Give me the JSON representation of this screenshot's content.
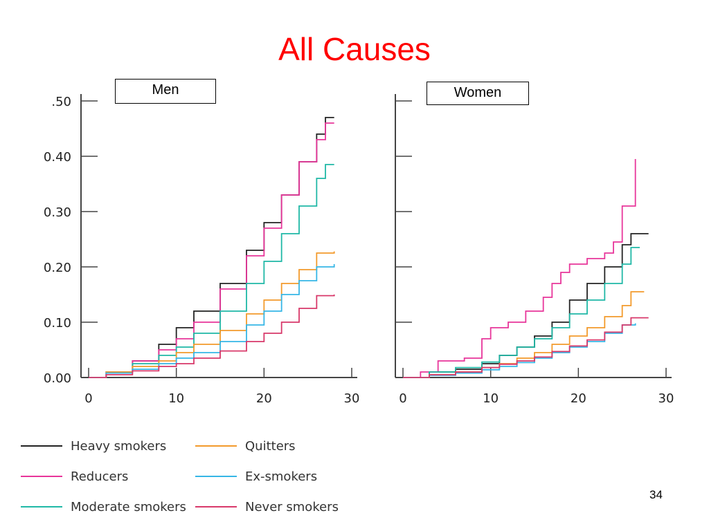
{
  "slide": {
    "title": "All Causes",
    "page_number": "34"
  },
  "legend": {
    "items": [
      {
        "name": "Heavy smokers",
        "color": "#222222"
      },
      {
        "name": "Reducers",
        "color": "#e8359a"
      },
      {
        "name": "Moderate smokers",
        "color": "#1fb8a6"
      },
      {
        "name": "Quitters",
        "color": "#f39a2b"
      },
      {
        "name": "Ex-smokers",
        "color": "#36b6e6"
      },
      {
        "name": "Never smokers",
        "color": "#d8386a"
      }
    ]
  },
  "chart_data": [
    {
      "type": "line",
      "panel_label": "Men",
      "xlim": [
        0,
        30
      ],
      "ylim": [
        0,
        0.5
      ],
      "x_ticks": [
        "0",
        "10",
        "20",
        "30"
      ],
      "y_ticks": [
        ".50",
        "0.40",
        "0.30",
        "0.20",
        "0.10",
        "0.00"
      ],
      "y_tick_values": [
        0.5,
        0.4,
        0.3,
        0.2,
        0.1,
        0.0
      ],
      "grid": false,
      "series": [
        {
          "name": "Heavy smokers",
          "color": "#222222",
          "x": [
            0,
            2,
            5,
            8,
            10,
            12,
            15,
            18,
            20,
            22,
            24,
            26,
            27,
            28
          ],
          "y": [
            0,
            0.01,
            0.03,
            0.06,
            0.09,
            0.12,
            0.17,
            0.23,
            0.28,
            0.33,
            0.39,
            0.44,
            0.47,
            0.47
          ]
        },
        {
          "name": "Reducers",
          "color": "#e8359a",
          "x": [
            0,
            2,
            5,
            8,
            10,
            12,
            15,
            18,
            20,
            22,
            24,
            26,
            27,
            28
          ],
          "y": [
            0,
            0.01,
            0.03,
            0.05,
            0.07,
            0.1,
            0.16,
            0.22,
            0.27,
            0.33,
            0.39,
            0.43,
            0.46,
            0.46
          ]
        },
        {
          "name": "Moderate smokers",
          "color": "#1fb8a6",
          "x": [
            0,
            2,
            5,
            8,
            10,
            12,
            15,
            18,
            20,
            22,
            24,
            26,
            27,
            28
          ],
          "y": [
            0,
            0.01,
            0.025,
            0.04,
            0.055,
            0.08,
            0.12,
            0.17,
            0.21,
            0.26,
            0.31,
            0.36,
            0.385,
            0.385
          ]
        },
        {
          "name": "Quitters",
          "color": "#f39a2b",
          "x": [
            0,
            2,
            5,
            8,
            10,
            12,
            15,
            18,
            20,
            22,
            24,
            26,
            28
          ],
          "y": [
            0,
            0.01,
            0.02,
            0.03,
            0.045,
            0.06,
            0.085,
            0.115,
            0.14,
            0.17,
            0.195,
            0.225,
            0.228
          ]
        },
        {
          "name": "Ex-smokers",
          "color": "#36b6e6",
          "x": [
            0,
            2,
            5,
            8,
            10,
            12,
            15,
            18,
            20,
            22,
            24,
            26,
            28
          ],
          "y": [
            0,
            0.008,
            0.015,
            0.025,
            0.035,
            0.045,
            0.065,
            0.095,
            0.12,
            0.15,
            0.175,
            0.2,
            0.205
          ]
        },
        {
          "name": "Never smokers",
          "color": "#d8386a",
          "x": [
            0,
            2,
            5,
            8,
            10,
            12,
            15,
            18,
            20,
            22,
            24,
            26,
            28
          ],
          "y": [
            0,
            0.005,
            0.012,
            0.02,
            0.025,
            0.035,
            0.048,
            0.065,
            0.08,
            0.1,
            0.125,
            0.148,
            0.15
          ]
        }
      ]
    },
    {
      "type": "line",
      "panel_label": "Women",
      "xlim": [
        0,
        30
      ],
      "ylim": [
        0,
        0.5
      ],
      "x_ticks": [
        "0",
        "10",
        "20",
        "30"
      ],
      "y_ticks": [],
      "y_tick_values": [
        0.5,
        0.4,
        0.3,
        0.2,
        0.1,
        0.0
      ],
      "grid": false,
      "series": [
        {
          "name": "Heavy smokers",
          "color": "#222222",
          "x": [
            0,
            3,
            6,
            9,
            11,
            13,
            15,
            17,
            19,
            21,
            23,
            25,
            26,
            28
          ],
          "y": [
            0,
            0.01,
            0.015,
            0.025,
            0.04,
            0.055,
            0.075,
            0.1,
            0.14,
            0.17,
            0.2,
            0.24,
            0.26,
            0.26
          ]
        },
        {
          "name": "Reducers",
          "color": "#e8359a",
          "x": [
            0,
            2,
            4,
            7,
            9,
            10,
            12,
            14,
            16,
            17,
            18,
            19,
            21,
            23,
            24,
            25,
            26,
            26.5
          ],
          "y": [
            0,
            0.01,
            0.03,
            0.035,
            0.07,
            0.09,
            0.1,
            0.12,
            0.145,
            0.17,
            0.19,
            0.205,
            0.215,
            0.225,
            0.245,
            0.31,
            0.31,
            0.395
          ]
        },
        {
          "name": "Moderate smokers",
          "color": "#1fb8a6",
          "x": [
            0,
            3,
            6,
            9,
            11,
            13,
            15,
            17,
            19,
            21,
            23,
            25,
            26,
            27
          ],
          "y": [
            0,
            0.01,
            0.018,
            0.028,
            0.04,
            0.055,
            0.07,
            0.09,
            0.115,
            0.14,
            0.17,
            0.205,
            0.235,
            0.235
          ]
        },
        {
          "name": "Quitters",
          "color": "#f39a2b",
          "x": [
            0,
            3,
            6,
            9,
            11,
            13,
            15,
            17,
            19,
            21,
            23,
            25,
            26,
            27.5
          ],
          "y": [
            0,
            0.005,
            0.01,
            0.018,
            0.025,
            0.035,
            0.045,
            0.06,
            0.075,
            0.09,
            0.11,
            0.13,
            0.155,
            0.155
          ]
        },
        {
          "name": "Ex-smokers",
          "color": "#36b6e6",
          "x": [
            0,
            3,
            6,
            9,
            11,
            13,
            15,
            17,
            19,
            21,
            23,
            25,
            26.5
          ],
          "y": [
            0,
            0.004,
            0.008,
            0.014,
            0.02,
            0.027,
            0.035,
            0.045,
            0.055,
            0.065,
            0.08,
            0.095,
            0.098
          ]
        },
        {
          "name": "Never smokers",
          "color": "#d8386a",
          "x": [
            0,
            3,
            6,
            9,
            11,
            13,
            15,
            17,
            19,
            21,
            23,
            25,
            26,
            28
          ],
          "y": [
            0,
            0.005,
            0.01,
            0.018,
            0.024,
            0.03,
            0.037,
            0.047,
            0.057,
            0.068,
            0.082,
            0.095,
            0.108,
            0.108
          ]
        }
      ]
    }
  ]
}
